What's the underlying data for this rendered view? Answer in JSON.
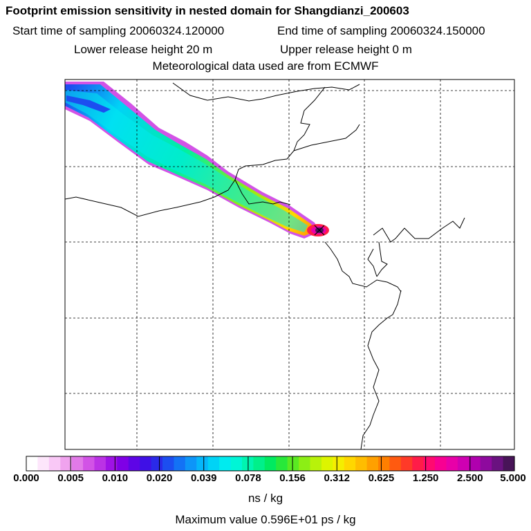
{
  "header": {
    "title": "Footprint emission sensitivity in nested domain for Shangdianzi_200603",
    "start_sampling": "Start time of sampling 20060324.120000",
    "end_sampling": "End time of sampling 20060324.150000",
    "lower_height": "Lower release height   20 m",
    "upper_height": "Upper release height    0 m",
    "met_data": "Meteorological data used are from ECMWF"
  },
  "colorbar": {
    "labels": [
      "0.000",
      "0.005",
      "0.010",
      "0.020",
      "0.039",
      "0.078",
      "0.156",
      "0.312",
      "0.625",
      "1.250",
      "2.500",
      "5.000"
    ],
    "colors": [
      "#ffffff",
      "#fde6fb",
      "#f9c8f6",
      "#f0a3ee",
      "#e27ae8",
      "#d253e6",
      "#bb32e5",
      "#9f12e6",
      "#7f00e6",
      "#5e05e6",
      "#3f10e6",
      "#2a2ae8",
      "#1c4ef0",
      "#1372f5",
      "#0d95f8",
      "#05b6fa",
      "#00d3f6",
      "#00ebef",
      "#00f5d6",
      "#00f5b0",
      "#00f08a",
      "#00ea60",
      "#28e83a",
      "#5aea22",
      "#8cee15",
      "#b8f20a",
      "#ddf500",
      "#f5ee00",
      "#ffd700",
      "#ffbd00",
      "#ffa000",
      "#ff7f00",
      "#ff5a10",
      "#ff3a28",
      "#ff1c48",
      "#ff0a70",
      "#f80092",
      "#e800a8",
      "#cf00b2",
      "#b000ae",
      "#8e0a9e",
      "#6a1280",
      "#481458"
    ],
    "unit": "ns / kg"
  },
  "footer": {
    "max_value": "Maximum value  0.596E+01 ps / kg"
  },
  "chart_data": {
    "type": "heatmap",
    "title": "Footprint emission sensitivity in nested domain for Shangdianzi_200603",
    "colorbar_levels": [
      0.0,
      0.005,
      0.01,
      0.02,
      0.039,
      0.078,
      0.156,
      0.312,
      0.625,
      1.25,
      2.5,
      5.0
    ],
    "colorbar_unit": "ns / kg",
    "maximum_value": "0.596E+01 ps / kg",
    "plume_direction": "northwest",
    "receptor": "Shangdianzi",
    "gridlines": true
  }
}
